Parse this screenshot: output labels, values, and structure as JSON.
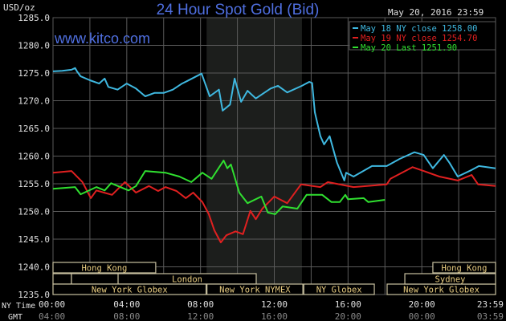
{
  "chart_data": {
    "type": "line",
    "title": "24 Hour Spot Gold (Bid)",
    "watermark": "www.kitco.com",
    "timestamp": "May 20, 2016 23:59",
    "ylabel": "USD/oz",
    "ylim": [
      1235,
      1285
    ],
    "yticks": [
      "1285.0",
      "1280.0",
      "1275.0",
      "1270.0",
      "1265.0",
      "1260.0",
      "1255.0",
      "1250.0",
      "1245.0",
      "1240.0",
      "1235.0"
    ],
    "xlim_hours": [
      0,
      24
    ],
    "x_row_label_ny": "NY Time",
    "x_row_label_gmt": "GMT",
    "xticks_ny": [
      "00:00",
      "04:00",
      "08:00",
      "12:00",
      "16:00",
      "20:00",
      "23:59"
    ],
    "xticks_gmt": [
      "04:00",
      "08:00",
      "12:00",
      "16:00",
      "20:00",
      "00:00",
      "03:59"
    ],
    "grid": true,
    "legend_position": "top-right",
    "highlight_hours": [
      8.33,
      13.5
    ],
    "colors": {
      "background": "#000000",
      "grid": "#5a5a5a",
      "title": "#4f6fe0",
      "shade": "#1c1e1c",
      "session_border": "#c8c0a0",
      "session_text": "#e8cc80",
      "axis_text": "#e0e0e0",
      "gmt_text": "#8a8a8a"
    },
    "series": [
      {
        "name": "May 18 NY close 1258.00",
        "color": "#3fb8e0",
        "x": [
          0,
          0.5,
          1,
          1.2,
          1.3,
          1.5,
          2,
          2.5,
          2.8,
          3,
          3.5,
          4,
          4.5,
          5,
          5.5,
          6,
          6.5,
          7,
          7.3,
          8.06,
          8.5,
          9,
          9.2,
          9.6,
          9.85,
          10.2,
          10.55,
          11,
          11.8,
          12.2,
          12.7,
          13.5,
          13.9,
          14.05,
          14.2,
          14.5,
          14.7,
          15,
          15.4,
          15.8,
          15.9,
          16.3,
          17.3,
          18.1,
          18.8,
          19.6,
          20.1,
          20.6,
          21.2,
          21.5,
          21.95,
          22.7,
          23.1,
          24
        ],
        "y": [
          1275.3,
          1275.4,
          1275.6,
          1275.9,
          1275.3,
          1274.4,
          1273.7,
          1273.1,
          1274.0,
          1272.5,
          1272.0,
          1273.1,
          1272.2,
          1270.8,
          1271.4,
          1271.4,
          1272.0,
          1273.1,
          1273.6,
          1274.9,
          1270.8,
          1272.0,
          1268.2,
          1269.3,
          1274.0,
          1269.8,
          1271.8,
          1270.4,
          1272.2,
          1272.7,
          1271.5,
          1272.7,
          1273.4,
          1273.2,
          1267.9,
          1263.6,
          1262.1,
          1263.6,
          1258.8,
          1255.6,
          1257.0,
          1256.3,
          1258.2,
          1258.2,
          1259.5,
          1260.7,
          1260.2,
          1257.8,
          1260.2,
          1258.8,
          1256.3,
          1257.5,
          1258.2,
          1257.8
        ]
      },
      {
        "name": "May 19 NY close 1254.70",
        "color": "#e02020",
        "x": [
          0,
          1,
          1.6,
          2.05,
          2.35,
          3.2,
          3.9,
          4.5,
          5.2,
          5.7,
          6.1,
          6.7,
          7.2,
          7.6,
          8.1,
          8.45,
          8.75,
          9.1,
          9.4,
          9.9,
          10.3,
          10.7,
          11,
          11.35,
          12,
          12.7,
          13.45,
          14.5,
          14.9,
          16.3,
          18.1,
          18.3,
          19.5,
          20.1,
          20.95,
          21.95,
          22.7,
          23.05,
          24
        ],
        "y": [
          1257.0,
          1257.3,
          1255.3,
          1252.4,
          1253.8,
          1253.0,
          1255.3,
          1253.4,
          1254.6,
          1253.7,
          1254.4,
          1253.7,
          1252.4,
          1253.4,
          1251.7,
          1249.5,
          1246.6,
          1244.4,
          1245.7,
          1246.4,
          1245.9,
          1250.1,
          1248.6,
          1250.5,
          1252.7,
          1251.5,
          1254.9,
          1254.4,
          1255.3,
          1254.4,
          1254.9,
          1255.9,
          1258.0,
          1257.3,
          1256.3,
          1255.6,
          1256.6,
          1254.9,
          1254.6
        ]
      },
      {
        "name": "May 20 Last 1251.90",
        "color": "#30e030",
        "x": [
          0,
          1.2,
          1.5,
          2.35,
          2.8,
          3.15,
          4.1,
          4.5,
          5,
          6.1,
          6.85,
          7.5,
          8.1,
          8.6,
          9.25,
          9.45,
          9.65,
          10.1,
          10.55,
          11.3,
          11.65,
          12.05,
          12.45,
          13.25,
          13.75,
          14.6,
          15.1,
          15.55,
          15.85,
          16,
          16.85,
          17.1,
          18.0
        ],
        "y": [
          1254.1,
          1254.4,
          1253.1,
          1254.4,
          1253.8,
          1255.1,
          1253.8,
          1254.6,
          1257.3,
          1257.0,
          1256.3,
          1255.3,
          1257.0,
          1255.9,
          1259.2,
          1257.8,
          1258.5,
          1253.4,
          1251.5,
          1252.7,
          1249.8,
          1249.5,
          1250.9,
          1250.5,
          1253.0,
          1253.0,
          1251.7,
          1251.7,
          1253.0,
          1252.2,
          1252.4,
          1251.7,
          1252.1
        ]
      }
    ],
    "sessions": [
      {
        "label": "Hong Kong",
        "row": 0,
        "start": 0,
        "end": 5.57
      },
      {
        "label": "",
        "row": 1,
        "start": 0,
        "end": 1.0
      },
      {
        "label": "",
        "row": 1,
        "start": 1.0,
        "end": 3.53
      },
      {
        "label": "London",
        "row": 1,
        "start": 3.53,
        "end": 11.02
      },
      {
        "label": "New York Globex",
        "row": 2,
        "start": 0,
        "end": 8.3
      },
      {
        "label": "New York NYMEX",
        "row": 2,
        "start": 8.35,
        "end": 13.55
      },
      {
        "label": "NY Globex",
        "row": 2,
        "start": 13.6,
        "end": 17.425
      },
      {
        "label": "New York Globex",
        "row": 2,
        "start": 18.12,
        "end": 24
      },
      {
        "label": "Sydney",
        "row": 1,
        "start": 19.08,
        "end": 24
      },
      {
        "label": "Hong Kong",
        "row": 0,
        "start": 20.6,
        "end": 24
      }
    ]
  }
}
